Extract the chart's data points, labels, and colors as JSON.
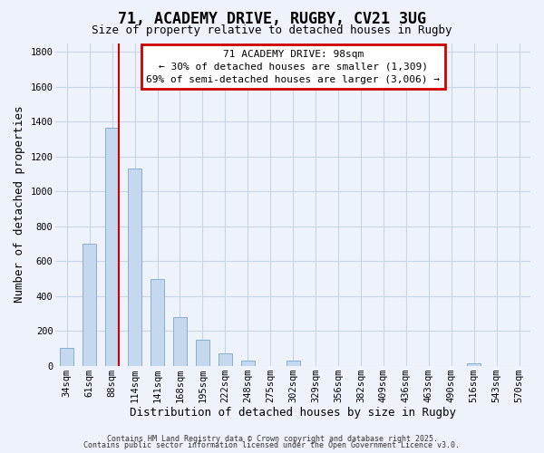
{
  "title": "71, ACADEMY DRIVE, RUGBY, CV21 3UG",
  "subtitle": "Size of property relative to detached houses in Rugby",
  "xlabel": "Distribution of detached houses by size in Rugby",
  "ylabel": "Number of detached properties",
  "bar_labels": [
    "34sqm",
    "61sqm",
    "88sqm",
    "114sqm",
    "141sqm",
    "168sqm",
    "195sqm",
    "222sqm",
    "248sqm",
    "275sqm",
    "302sqm",
    "329sqm",
    "356sqm",
    "382sqm",
    "409sqm",
    "436sqm",
    "463sqm",
    "490sqm",
    "516sqm",
    "543sqm",
    "570sqm"
  ],
  "bar_values": [
    100,
    700,
    1365,
    1130,
    495,
    280,
    148,
    70,
    30,
    0,
    30,
    0,
    0,
    0,
    0,
    0,
    0,
    0,
    15,
    0,
    0
  ],
  "bar_color": "#c5d8ee",
  "bar_edge_color": "#85b0d0",
  "vline_index": 2,
  "vline_color": "#cc0000",
  "annotation_title": "71 ACADEMY DRIVE: 98sqm",
  "annotation_line1": "← 30% of detached houses are smaller (1,309)",
  "annotation_line2": "69% of semi-detached houses are larger (3,006) →",
  "annotation_box_color": "#ffffff",
  "annotation_box_edge": "#cc0000",
  "ylim": [
    0,
    1850
  ],
  "yticks": [
    0,
    200,
    400,
    600,
    800,
    1000,
    1200,
    1400,
    1600,
    1800
  ],
  "footer1": "Contains HM Land Registry data © Crown copyright and database right 2025.",
  "footer2": "Contains public sector information licensed under the Open Government Licence v3.0.",
  "background_color": "#eef2fb",
  "grid_color": "#c8d4e8",
  "title_fontsize": 12,
  "subtitle_fontsize": 9,
  "tick_fontsize": 7.5,
  "axis_label_fontsize": 9
}
